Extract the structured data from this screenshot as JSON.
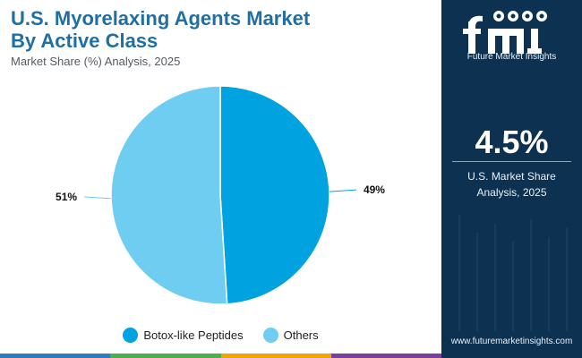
{
  "header": {
    "title_line1": "U.S. Myorelaxing Agents Market",
    "title_line2": "By Active Class",
    "subtitle": "Market Share (%) Analysis, 2025"
  },
  "chart_data": {
    "type": "pie",
    "title": "U.S. Myorelaxing Agents Market By Active Class",
    "subtitle": "Market Share (%) Analysis, 2025",
    "slices": [
      {
        "name": "Botox-like Peptides",
        "value": 49,
        "label": "49%",
        "color": "#00a3e0"
      },
      {
        "name": "Others",
        "value": 51,
        "label": "51%",
        "color": "#6fcdf2"
      }
    ],
    "legend_position": "bottom"
  },
  "legend": [
    {
      "label": "Botox-like Peptides",
      "color": "#00a3e0"
    },
    {
      "label": "Others",
      "color": "#6fcdf2"
    }
  ],
  "sidebar": {
    "logo_letters": "fmi",
    "brand": "Future Market Insights",
    "stat_value": "4.5%",
    "stat_label_line1": "U.S. Market Share",
    "stat_label_line2": "Analysis, 2025",
    "website": "www.futuremarketinsights.com"
  },
  "colors": {
    "title": "#1f6fa3",
    "panel": "#0d3150",
    "bottom_bar": [
      "#2e7bbf",
      "#4cae4f",
      "#f0a500",
      "#7a3e9d"
    ]
  }
}
